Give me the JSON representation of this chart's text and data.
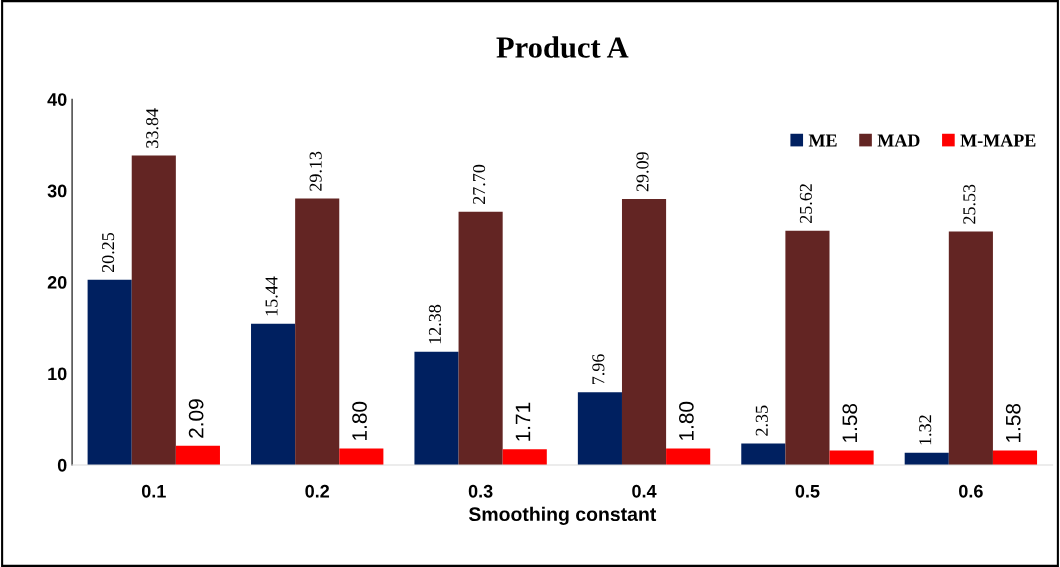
{
  "chart_data": {
    "type": "bar",
    "title": "Product A",
    "xlabel": "Smoothing constant",
    "categories": [
      "0.1",
      "0.2",
      "0.3",
      "0.4",
      "0.5",
      "0.6"
    ],
    "series": [
      {
        "name": "ME",
        "color": "#002060",
        "values": [
          20.25,
          15.44,
          12.38,
          7.96,
          2.35,
          1.32
        ],
        "value_labels": [
          "20.25",
          "15.44",
          "12.38",
          "7.96",
          "2.35",
          "1.32"
        ]
      },
      {
        "name": "MAD",
        "color": "#632523",
        "values": [
          33.84,
          29.13,
          27.7,
          29.09,
          25.62,
          25.53
        ],
        "value_labels": [
          "33.84",
          "29.13",
          "27.70",
          "29.09",
          "25.62",
          "25.53"
        ]
      },
      {
        "name": "M-MAPE",
        "color": "#ff0000",
        "values": [
          2.09,
          1.8,
          1.71,
          1.8,
          1.58,
          1.58
        ],
        "value_labels": [
          "2.09",
          "1.80",
          "1.71",
          "1.80",
          "1.58",
          "1.58"
        ]
      }
    ],
    "ylim": [
      0,
      40
    ],
    "yticks": [
      0,
      10,
      20,
      30,
      40
    ],
    "grid": false,
    "legend": "top right"
  }
}
